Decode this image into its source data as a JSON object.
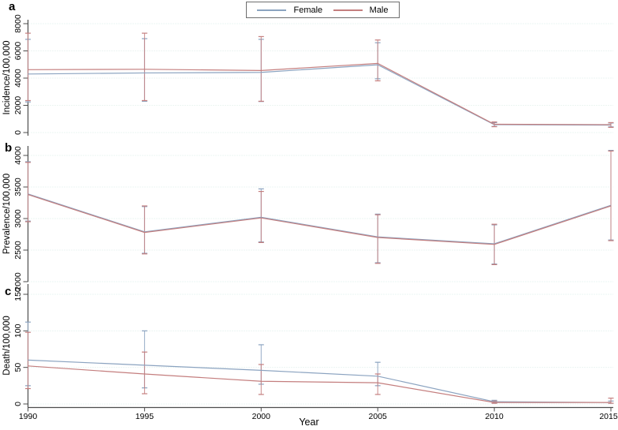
{
  "figure": {
    "xlabel": "Year",
    "legend": {
      "position": "top-center",
      "items": [
        {
          "label": "Female",
          "color": "#8ba3c0"
        },
        {
          "label": "Male",
          "color": "#c47e7e"
        }
      ]
    },
    "style": {
      "female_color": "#8ba3c0",
      "male_color": "#c47e7e",
      "gridline_color": "#d8ebe6",
      "axis_color": "#4d4d4d",
      "text_color": "#000000",
      "background": "#ffffff"
    }
  },
  "chart_data": [
    {
      "type": "line",
      "letter": "a",
      "ylabel": "Incidence/100,000",
      "xlabel": "Year",
      "x": [
        1990,
        1995,
        2000,
        2005,
        2010,
        2015
      ],
      "ylim": [
        0,
        8000
      ],
      "yticks": [
        0,
        2000,
        4000,
        6000,
        8000
      ],
      "grid": true,
      "series": [
        {
          "name": "Female",
          "values": [
            4300,
            4380,
            4420,
            4980,
            580,
            550
          ],
          "ci_low": [
            2250,
            2300,
            2280,
            3950,
            450,
            420
          ],
          "ci_high": [
            6850,
            6900,
            6850,
            6600,
            730,
            700
          ]
        },
        {
          "name": "Male",
          "values": [
            4620,
            4650,
            4560,
            5080,
            610,
            580
          ],
          "ci_low": [
            2350,
            2350,
            2300,
            3800,
            430,
            380
          ],
          "ci_high": [
            7300,
            7300,
            7050,
            6800,
            780,
            730
          ]
        }
      ]
    },
    {
      "type": "line",
      "letter": "b",
      "ylabel": "Prevalence/100,000",
      "xlabel": "Year",
      "x": [
        1990,
        1995,
        2000,
        2005,
        2010,
        2015
      ],
      "ylim": [
        2000,
        4000
      ],
      "yticks": [
        2000,
        2500,
        3000,
        3500,
        4000
      ],
      "grid": true,
      "series": [
        {
          "name": "Female",
          "values": [
            3390,
            2790,
            3020,
            2710,
            2600,
            3210
          ],
          "ci_low": [
            2960,
            2450,
            2630,
            2300,
            2280,
            2660
          ],
          "ci_high": [
            3900,
            3190,
            3470,
            3070,
            2900,
            4080
          ]
        },
        {
          "name": "Male",
          "values": [
            3380,
            2780,
            3010,
            2700,
            2590,
            3200
          ],
          "ci_low": [
            2950,
            2440,
            2620,
            2290,
            2270,
            2650
          ],
          "ci_high": [
            3890,
            3200,
            3430,
            3060,
            2910,
            4070
          ]
        }
      ]
    },
    {
      "type": "line",
      "letter": "c",
      "ylabel": "Death/100,000",
      "xlabel": "Year",
      "x": [
        1990,
        1995,
        2000,
        2005,
        2010,
        2015
      ],
      "ylim": [
        0,
        150
      ],
      "yticks": [
        0,
        50,
        100,
        150
      ],
      "grid": true,
      "series": [
        {
          "name": "Female",
          "values": [
            60,
            53,
            46,
            38,
            3,
            2
          ],
          "ci_low": [
            25,
            22,
            27,
            25,
            1,
            1
          ],
          "ci_high": [
            112,
            100,
            81,
            57,
            5,
            4
          ]
        },
        {
          "name": "Male",
          "values": [
            52,
            41,
            31,
            29,
            2,
            2
          ],
          "ci_low": [
            21,
            14,
            13,
            13,
            1,
            1
          ],
          "ci_high": [
            98,
            71,
            54,
            41,
            4,
            8
          ]
        }
      ]
    }
  ]
}
